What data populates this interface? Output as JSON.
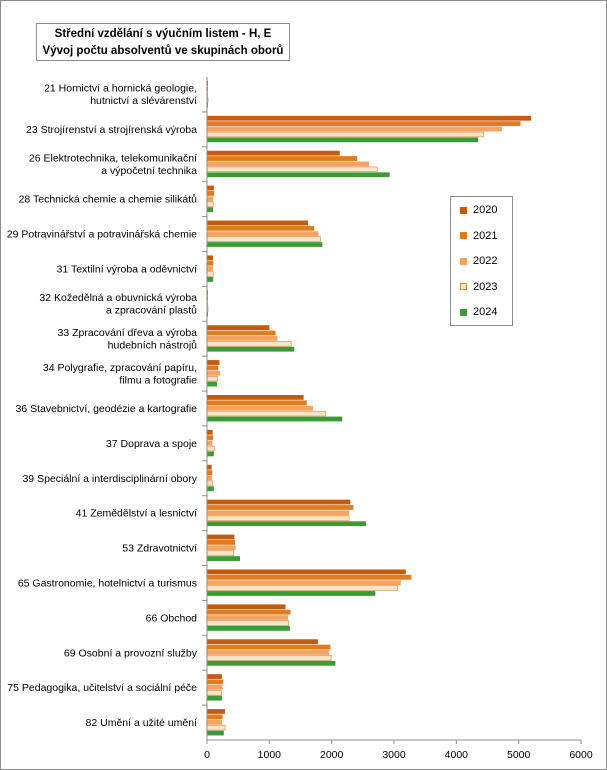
{
  "chart_data": {
    "type": "bar",
    "orientation": "horizontal",
    "title": [
      "Střední vzdělání s výučním listem - H, E",
      "Vývoj počtu absolventů ve skupinách oborů"
    ],
    "xlim": [
      0,
      6000
    ],
    "xticks": [
      "0",
      "1000",
      "2000",
      "3000",
      "4000",
      "5000",
      "6000"
    ],
    "grid": false,
    "legend_position": "right",
    "categories": [
      [
        "21 Hornictví a hornická geologie,",
        "hutnictví a slévárenství"
      ],
      [
        "23 Strojírenství a strojírenská výroba"
      ],
      [
        "26 Elektrotechnika, telekomunikační",
        "a výpočetní technika"
      ],
      [
        "28 Technická chemie a chemie silikátů"
      ],
      [
        "29 Potravinářství a potravinářská chemie"
      ],
      [
        "31 Textilní výroba a oděvnictví"
      ],
      [
        "32 Kožedělná a obuvnická výroba",
        "a zpracování plastů"
      ],
      [
        "33 Zpracování dřeva a výroba",
        "hudebních nástrojů"
      ],
      [
        "34 Polygrafie, zpracování papíru,",
        "filmu a fotografie"
      ],
      [
        "36 Stavebnictví, geodézie a kartografie"
      ],
      [
        "37 Doprava a spoje"
      ],
      [
        "39 Speciální a interdisciplinární obory"
      ],
      [
        "41 Zemědělství a lesnictví"
      ],
      [
        "53 Zdravotnictví"
      ],
      [
        "65 Gastronomie, hotelnictví a turismus"
      ],
      [
        "66 Obchod"
      ],
      [
        "69 Osobní a provozní služby"
      ],
      [
        "75 Pedagogika, učitelství a sociální péče"
      ],
      [
        "82 Umění a užité umění"
      ]
    ],
    "series": [
      {
        "name": "2020",
        "color": "#c55a11",
        "values": [
          10,
          5200,
          2130,
          110,
          1620,
          95,
          10,
          1000,
          200,
          1550,
          90,
          75,
          2300,
          440,
          3190,
          1260,
          1780,
          240,
          290
        ]
      },
      {
        "name": "2021",
        "color": "#e07b1f",
        "values": [
          10,
          5030,
          2410,
          115,
          1720,
          100,
          10,
          1100,
          180,
          1600,
          100,
          85,
          2350,
          450,
          3280,
          1340,
          1980,
          260,
          250
        ]
      },
      {
        "name": "2022",
        "color": "#f4a460",
        "values": [
          10,
          4730,
          2600,
          100,
          1790,
          95,
          10,
          1130,
          210,
          1700,
          85,
          80,
          2280,
          460,
          3110,
          1300,
          1960,
          250,
          240
        ]
      },
      {
        "name": "2023",
        "color": "#fde4c8",
        "values": [
          10,
          4440,
          2730,
          100,
          1820,
          100,
          10,
          1350,
          170,
          1900,
          120,
          90,
          2280,
          430,
          3060,
          1310,
          1990,
          230,
          290
        ]
      },
      {
        "name": "2024",
        "color": "#3c9b37",
        "values": [
          10,
          4350,
          2930,
          100,
          1850,
          100,
          10,
          1400,
          160,
          2170,
          110,
          110,
          2550,
          530,
          2700,
          1330,
          2060,
          240,
          270
        ]
      }
    ]
  }
}
